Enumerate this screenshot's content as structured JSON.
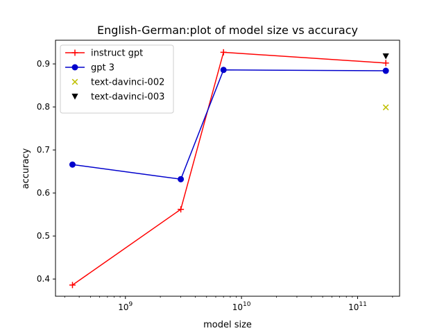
{
  "chart_data": {
    "type": "line",
    "title": "English-German:plot of model size vs accuracy",
    "xlabel": "model size",
    "ylabel": "accuracy",
    "xscale": "log",
    "xlim": [
      250000000,
      230000000000
    ],
    "ylim": [
      0.36,
      0.955
    ],
    "x_major_ticks": [
      {
        "value": 1000000000,
        "base": "10",
        "exp": "9"
      },
      {
        "value": 10000000000,
        "base": "10",
        "exp": "10"
      },
      {
        "value": 100000000000,
        "base": "10",
        "exp": "11"
      }
    ],
    "y_ticks": [
      {
        "value": 0.4,
        "label": "0.4"
      },
      {
        "value": 0.5,
        "label": "0.5"
      },
      {
        "value": 0.6,
        "label": "0.6"
      },
      {
        "value": 0.7,
        "label": "0.7"
      },
      {
        "value": 0.8,
        "label": "0.8"
      },
      {
        "value": 0.9,
        "label": "0.9"
      }
    ],
    "legend_position": "upper-left",
    "grid": false,
    "series": [
      {
        "name": "instruct gpt",
        "color": "#ff0000",
        "marker": "plus",
        "x": [
          350000000,
          3000000000,
          7000000000,
          175000000000
        ],
        "y": [
          0.386,
          0.562,
          0.927,
          0.902
        ]
      },
      {
        "name": "gpt 3",
        "color": "#0000cc",
        "marker": "circle",
        "x": [
          350000000,
          3000000000,
          7000000000,
          175000000000
        ],
        "y": [
          0.666,
          0.632,
          0.886,
          0.884
        ]
      },
      {
        "name": "text-davinci-002",
        "color": "#bfbf00",
        "marker": "x",
        "x": [
          175000000000
        ],
        "y": [
          0.799
        ]
      },
      {
        "name": "text-davinci-003",
        "color": "#000000",
        "marker": "triangle-down",
        "x": [
          175000000000
        ],
        "y": [
          0.918
        ]
      }
    ]
  }
}
